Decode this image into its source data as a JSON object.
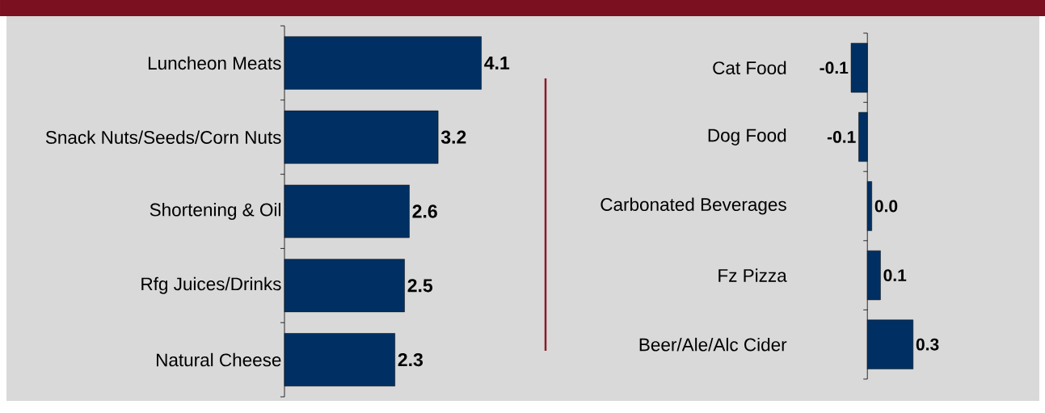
{
  "chart_data": [
    {
      "type": "bar",
      "orientation": "horizontal",
      "categories": [
        "Luncheon Meats",
        "Snack Nuts/Seeds/Corn Nuts",
        "Shortening & Oil",
        "Rfg Juices/Drinks",
        "Natural Cheese"
      ],
      "values": [
        4.1,
        3.2,
        2.6,
        2.5,
        2.3
      ],
      "color": "#003063",
      "data_labels": true
    },
    {
      "type": "bar",
      "orientation": "horizontal",
      "categories": [
        "Cat Food",
        "Dog Food",
        "Carbonated Beverages",
        "Fz Pizza",
        "Beer/Ale/Alc Cider"
      ],
      "values": [
        -0.107,
        -0.057,
        0.029,
        0.086,
        0.3
      ],
      "value_labels": [
        "-0.1",
        "-0.1",
        "0.0",
        "0.1",
        "0.3"
      ],
      "color": "#003063"
    }
  ]
}
